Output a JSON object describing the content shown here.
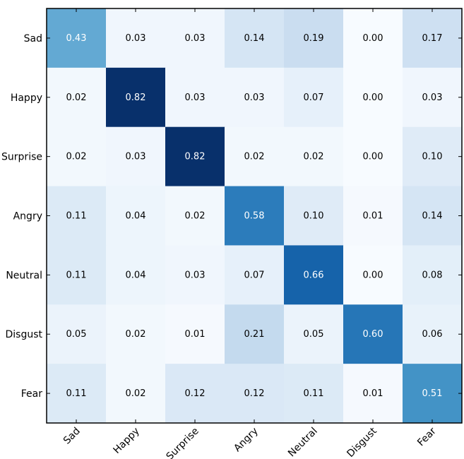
{
  "chart_data": {
    "type": "heatmap",
    "rows": [
      "Sad",
      "Happy",
      "Surprise",
      "Angry",
      "Neutral",
      "Disgust",
      "Fear"
    ],
    "columns": [
      "Sad",
      "Happy",
      "Surprise",
      "Angry",
      "Neutral",
      "Disgust",
      "Fear"
    ],
    "values": [
      [
        0.43,
        0.03,
        0.03,
        0.14,
        0.19,
        0.0,
        0.17
      ],
      [
        0.02,
        0.82,
        0.03,
        0.03,
        0.07,
        0.0,
        0.03
      ],
      [
        0.02,
        0.03,
        0.82,
        0.02,
        0.02,
        0.0,
        0.1
      ],
      [
        0.11,
        0.04,
        0.02,
        0.58,
        0.1,
        0.01,
        0.14
      ],
      [
        0.11,
        0.04,
        0.03,
        0.07,
        0.66,
        0.0,
        0.08
      ],
      [
        0.05,
        0.02,
        0.01,
        0.21,
        0.05,
        0.6,
        0.06
      ],
      [
        0.11,
        0.02,
        0.12,
        0.12,
        0.11,
        0.01,
        0.51
      ]
    ],
    "colormap": "Blues",
    "value_range": [
      0,
      0.82
    ],
    "grid": false,
    "legend": "none"
  }
}
